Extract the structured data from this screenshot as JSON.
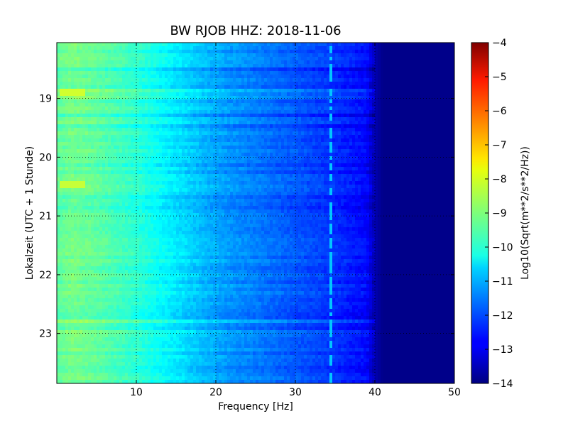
{
  "chart_data": {
    "type": "heatmap",
    "title": "BW RJOB HHZ: 2018-11-06",
    "xlabel": "Frequency [Hz]",
    "ylabel": "Lokalzeit (UTC + 1 Stunde)",
    "colorbar_label": "Log10(Sqrt(m**2/s**2/Hz))",
    "xlim": [
      0,
      50
    ],
    "ylim_hours": [
      18.05,
      23.85
    ],
    "y_inverted": true,
    "clim": [
      -14,
      -4
    ],
    "colormap": "jet",
    "grid": "dotted",
    "xticks": [
      10,
      20,
      30,
      40,
      50
    ],
    "xtick_labels": [
      "10",
      "20",
      "30",
      "40",
      "50"
    ],
    "yticks": [
      19,
      20,
      21,
      22,
      23
    ],
    "ytick_labels": [
      "19",
      "20",
      "21",
      "22",
      "23"
    ],
    "cbar_ticks": [
      -14,
      -13,
      -12,
      -11,
      -10,
      -9,
      -8,
      -7,
      -6,
      -5,
      -4
    ],
    "cbar_tick_labels": [
      "−14",
      "−13",
      "−12",
      "−11",
      "−10",
      "−9",
      "−8",
      "−7",
      "−6",
      "−5",
      "−4"
    ],
    "spectrum_profile": {
      "frequency_hz": [
        0,
        2,
        5,
        8,
        10,
        13,
        16,
        19,
        22,
        26,
        30,
        34,
        37,
        39,
        40,
        41,
        50
      ],
      "log10_amplitude": [
        -9.3,
        -9.1,
        -9.3,
        -9.6,
        -9.8,
        -10.2,
        -10.6,
        -11.0,
        -11.3,
        -11.6,
        -11.9,
        -12.2,
        -12.5,
        -12.7,
        -13.5,
        -13.9,
        -13.9
      ]
    },
    "features": [
      {
        "description": "narrow band near 34.5 Hz",
        "frequency_hz": 34.5,
        "log10_amplitude": -10.8
      },
      {
        "description": "bright short band at low frequency",
        "frequency_range_hz": [
          0.5,
          3.5
        ],
        "time_hours": 18.9,
        "log10_amplitude": -8.2
      },
      {
        "description": "bright short band at low frequency",
        "frequency_range_hz": [
          0.5,
          3.5
        ],
        "time_hours": 20.47,
        "log10_amplitude": -8.3
      }
    ]
  }
}
